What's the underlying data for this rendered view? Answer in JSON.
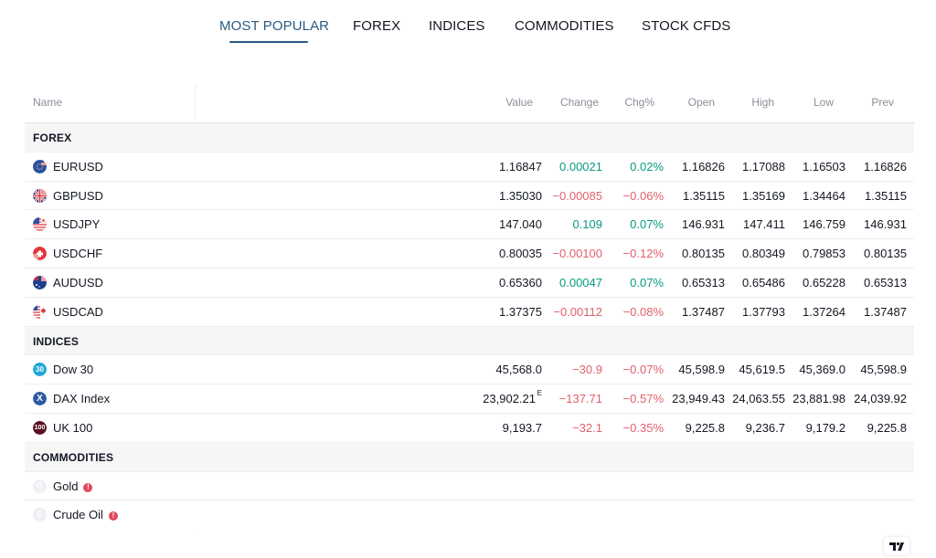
{
  "tabs": [
    {
      "label": "MOST POPULAR",
      "active": true
    },
    {
      "label": "FOREX",
      "active": false
    },
    {
      "label": "INDICES",
      "active": false
    },
    {
      "label": "COMMODITIES",
      "active": false
    },
    {
      "label": "STOCK CFDS",
      "active": false
    }
  ],
  "columns": {
    "name": "Name",
    "value": "Value",
    "change": "Change",
    "chg_pct": "Chg%",
    "open": "Open",
    "high": "High",
    "low": "Low",
    "prev": "Prev"
  },
  "sections": {
    "forex": {
      "label": "FOREX",
      "rows": [
        {
          "symbol": "EURUSD",
          "icon": "eu-us-flag-icon",
          "value": "1.16847",
          "change": "0.00021",
          "chg_pct": "0.02%",
          "open": "1.16826",
          "high": "1.17088",
          "low": "1.16503",
          "prev": "1.16826",
          "dir": "pos"
        },
        {
          "symbol": "GBPUSD",
          "icon": "gb-us-flag-icon",
          "value": "1.35030",
          "change": "−0.00085",
          "chg_pct": "−0.06%",
          "open": "1.35115",
          "high": "1.35169",
          "low": "1.34464",
          "prev": "1.35115",
          "dir": "neg"
        },
        {
          "symbol": "USDJPY",
          "icon": "us-jp-flag-icon",
          "value": "147.040",
          "change": "0.109",
          "chg_pct": "0.07%",
          "open": "146.931",
          "high": "147.411",
          "low": "146.759",
          "prev": "146.931",
          "dir": "pos"
        },
        {
          "symbol": "USDCHF",
          "icon": "us-ch-flag-icon",
          "value": "0.80035",
          "change": "−0.00100",
          "chg_pct": "−0.12%",
          "open": "0.80135",
          "high": "0.80349",
          "low": "0.79853",
          "prev": "0.80135",
          "dir": "neg"
        },
        {
          "symbol": "AUDUSD",
          "icon": "au-us-flag-icon",
          "value": "0.65360",
          "change": "0.00047",
          "chg_pct": "0.07%",
          "open": "0.65313",
          "high": "0.65486",
          "low": "0.65228",
          "prev": "0.65313",
          "dir": "pos"
        },
        {
          "symbol": "USDCAD",
          "icon": "us-ca-flag-icon",
          "value": "1.37375",
          "change": "−0.00112",
          "chg_pct": "−0.08%",
          "open": "1.37487",
          "high": "1.37793",
          "low": "1.37264",
          "prev": "1.37487",
          "dir": "neg"
        }
      ]
    },
    "indices": {
      "label": "INDICES",
      "rows": [
        {
          "symbol": "Dow 30",
          "icon": "dow-30-icon",
          "icon_text": "30",
          "value": "45,568.0",
          "change": "−30.9",
          "chg_pct": "−0.07%",
          "open": "45,598.9",
          "high": "45,619.5",
          "low": "45,369.0",
          "prev": "45,598.9",
          "dir": "neg"
        },
        {
          "symbol": "DAX Index",
          "icon": "dax-icon",
          "icon_text": "X",
          "value": "23,902.21",
          "value_mark": "E",
          "change": "−137.71",
          "chg_pct": "−0.57%",
          "open": "23,949.43",
          "high": "24,063.55",
          "low": "23,881.98",
          "prev": "24,039.92",
          "dir": "neg"
        },
        {
          "symbol": "UK 100",
          "icon": "uk-100-icon",
          "icon_text": "100",
          "value": "9,193.7",
          "change": "−32.1",
          "chg_pct": "−0.35%",
          "open": "9,225.8",
          "high": "9,236.7",
          "low": "9,179.2",
          "prev": "9,225.8",
          "dir": "neg"
        }
      ]
    },
    "commodities": {
      "label": "COMMODITIES",
      "rows": [
        {
          "symbol": "Gold",
          "icon": "gold-placeholder-icon",
          "icon_text": "G",
          "warning": "!"
        },
        {
          "symbol": "Crude Oil",
          "icon": "crude-oil-placeholder-icon",
          "icon_text": "C",
          "warning": "!"
        }
      ]
    }
  },
  "colors": {
    "active_tab": "#2a5a80",
    "positive": "#089981",
    "negative": "#f23645",
    "warning": "#e0475b"
  }
}
